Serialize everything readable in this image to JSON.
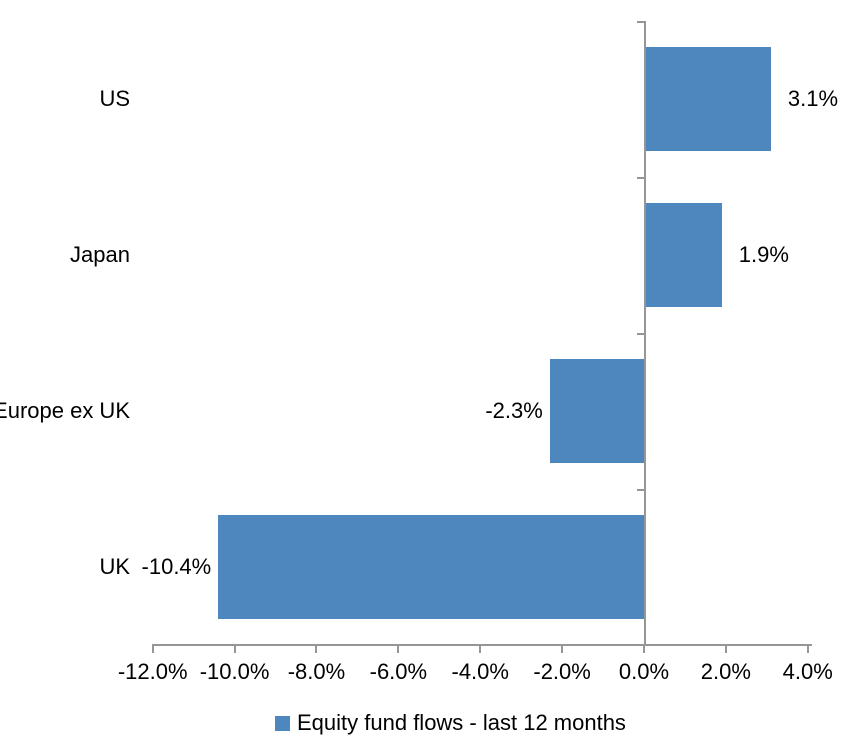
{
  "chart_data": {
    "type": "bar",
    "orientation": "horizontal",
    "title": "",
    "xlabel": "",
    "ylabel": "",
    "categories": [
      "US",
      "Japan",
      "Europe ex UK",
      "UK"
    ],
    "series": [
      {
        "name": "Equity fund flows - last 12 months",
        "values": [
          3.1,
          1.9,
          -2.3,
          -10.4
        ],
        "data_labels": [
          "3.1%",
          "1.9%",
          "-2.3%",
          "-10.4%"
        ]
      }
    ],
    "xlim": [
      -12,
      4
    ],
    "x_tick_values": [
      -12,
      -10,
      -8,
      -6,
      -4,
      -2,
      0,
      2,
      4
    ],
    "x_ticks": [
      "-12.0%",
      "-10.0%",
      "-8.0%",
      "-6.0%",
      "-4.0%",
      "-2.0%",
      "0.0%",
      "2.0%",
      "4.0%"
    ],
    "grid": false,
    "legend_position": "bottom",
    "legend": [
      {
        "label": "Equity fund flows - last 12 months",
        "color": "#4E87BE"
      }
    ],
    "colors": {
      "bar": "#4E87BE",
      "axis": "#969696",
      "text": "#000000",
      "background": "#FFFFFF"
    }
  }
}
